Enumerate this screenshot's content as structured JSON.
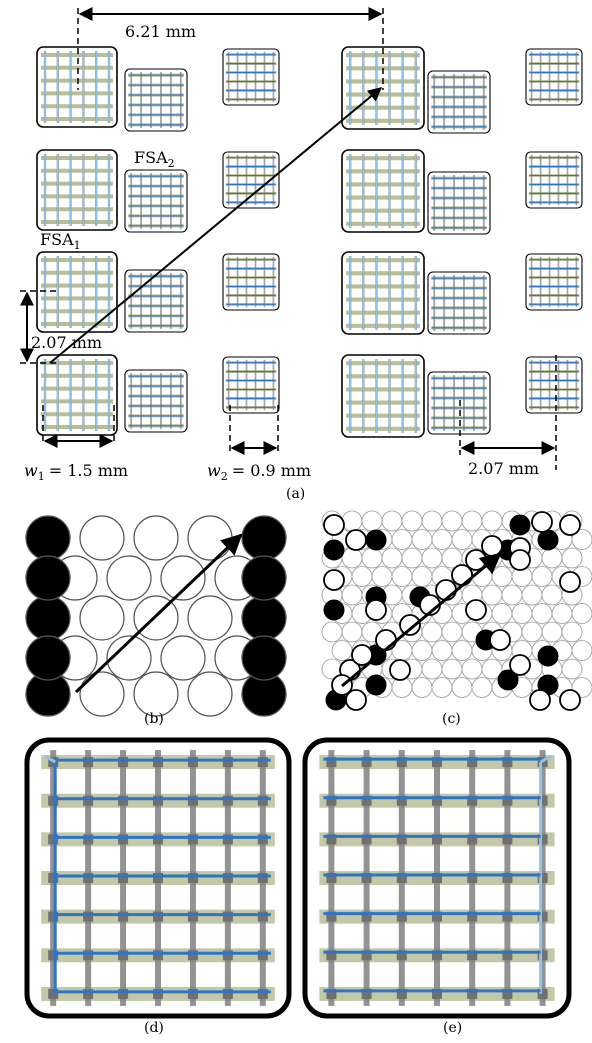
{
  "panel_a": {
    "dim_top": "6.21 mm",
    "dim_left": "2.07 mm",
    "dim_bottom_right": "2.07 mm",
    "label_fsa1": "FSA",
    "label_fsa1_sub": "1",
    "label_fsa2": "FSA",
    "label_fsa2_sub": "2",
    "w1_label": "w",
    "w1_sub": "1",
    "w1_value": "= 1.5 mm",
    "w2_label": "w",
    "w2_sub": "2",
    "w2_value": "= 0.9 mm"
  },
  "captions": {
    "a": "(a)",
    "b": "(b)",
    "c": "(c)",
    "d": "(d)",
    "e": "(e)"
  },
  "colors": {
    "blue_wire": "#2e75c9",
    "light_blue": "#8ec3ea",
    "olive": "#b8be96",
    "gray": "#808080",
    "frame": "#000000"
  }
}
